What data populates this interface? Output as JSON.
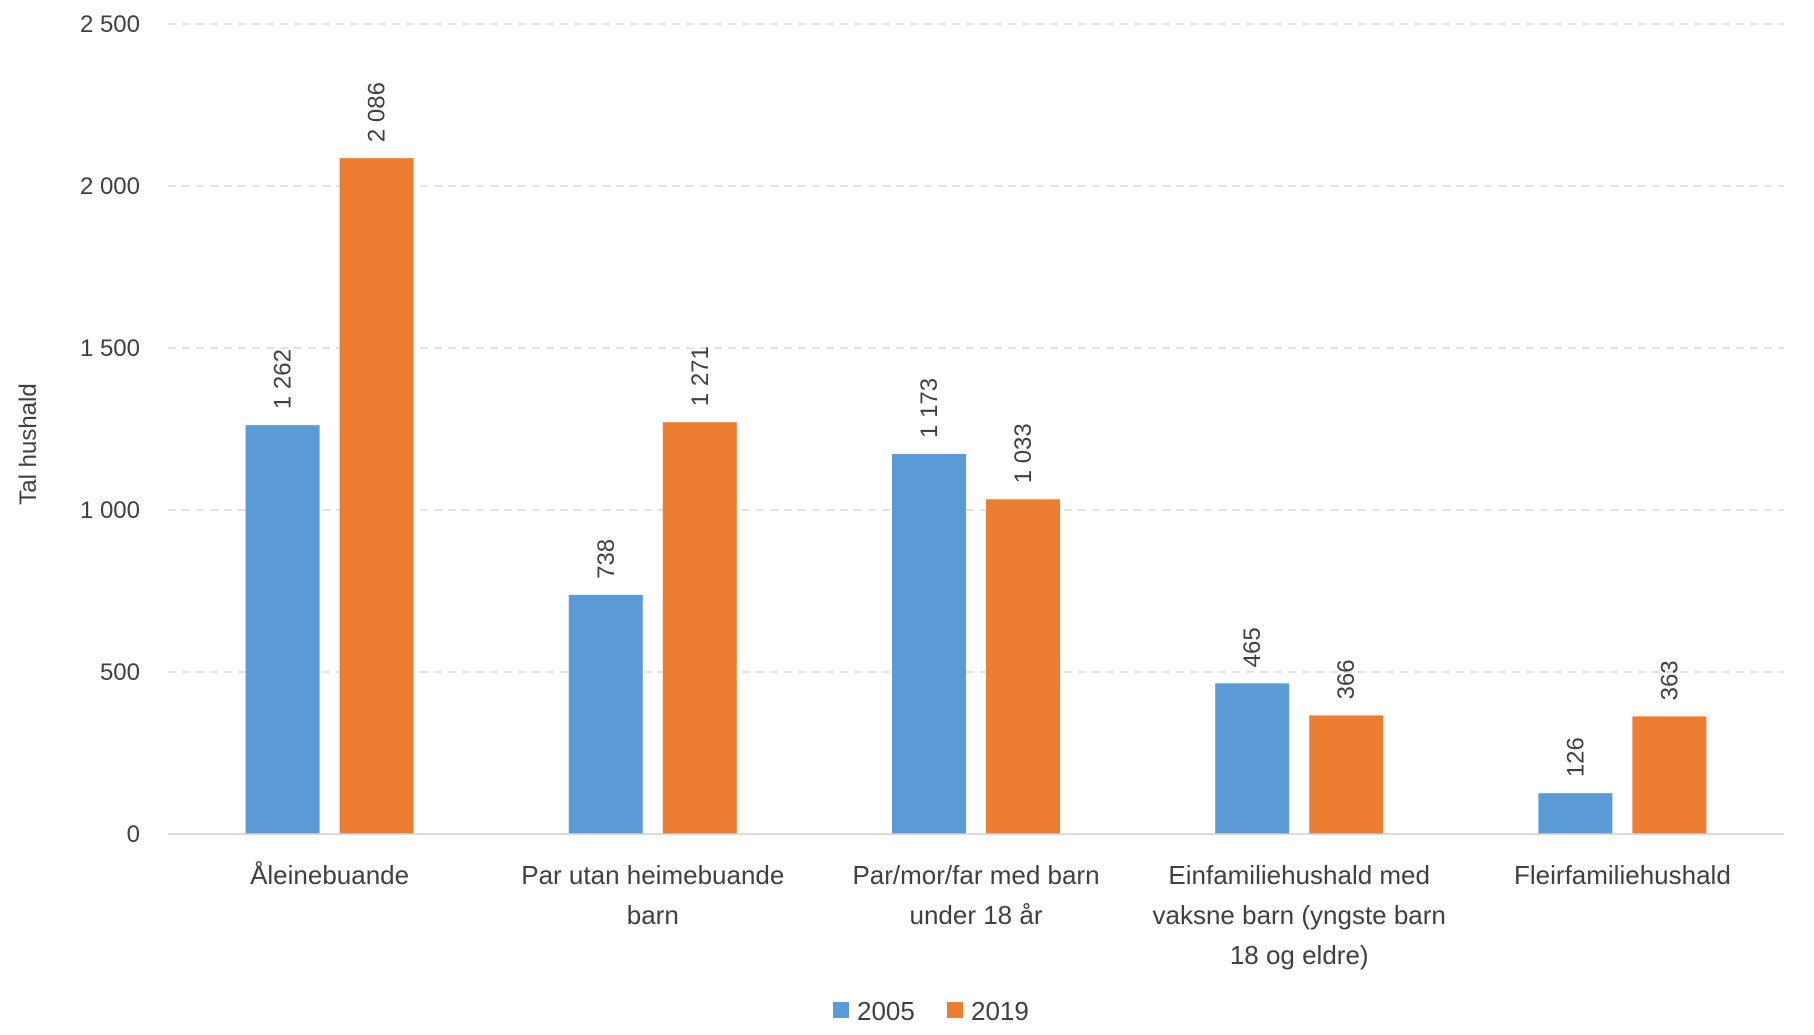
{
  "chart_data": {
    "type": "bar",
    "ylabel": "Tal hushald",
    "ylim": [
      0,
      2500
    ],
    "yticks": [
      0,
      500,
      1000,
      1500,
      2000,
      2500
    ],
    "ytick_labels": [
      "0",
      "500",
      "1 000",
      "1 500",
      "2 000",
      "2 500"
    ],
    "grid": true,
    "legend_position": "bottom",
    "categories": [
      [
        "Åleinebuande"
      ],
      [
        "Par utan heimebuande",
        "barn"
      ],
      [
        "Par/mor/far med barn",
        "under 18 år"
      ],
      [
        "Einfamiliehushald med",
        "vaksne barn (yngste barn",
        "18 og eldre)"
      ],
      [
        "Fleirfamiliehushald"
      ]
    ],
    "series": [
      {
        "name": "2005",
        "color": "#5B9BD5",
        "values": [
          1262,
          738,
          1173,
          465,
          126
        ],
        "labels": [
          "1 262",
          "738",
          "1 173",
          "465",
          "126"
        ]
      },
      {
        "name": "2019",
        "color": "#ED7D31",
        "values": [
          2086,
          1271,
          1033,
          366,
          363
        ],
        "labels": [
          "2 086",
          "1 271",
          "1 033",
          "366",
          "363"
        ]
      }
    ]
  }
}
